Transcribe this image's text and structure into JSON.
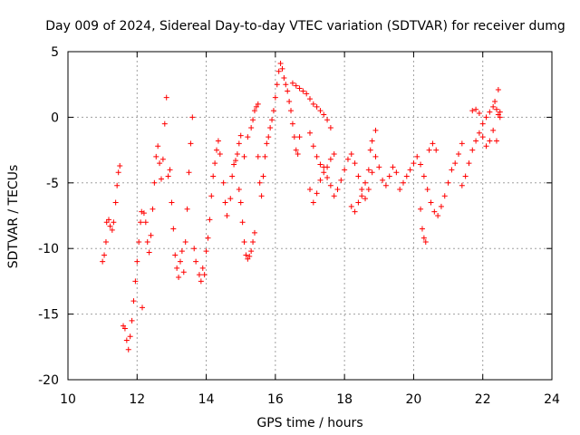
{
  "chart_data": {
    "type": "scatter",
    "title": "Day 009 of 2024, Sidereal Day-to-day VTEC variation (SDTVAR) for receiver dumg",
    "xlabel": "GPS time / hours",
    "ylabel": "SDTVAR / TECUs",
    "xlim": [
      10,
      24
    ],
    "ylim": [
      -20,
      5
    ],
    "xticks": [
      "10",
      "12",
      "14",
      "16",
      "18",
      "20",
      "22",
      "24"
    ],
    "yticks": [
      "5",
      "0",
      "-5",
      "-10",
      "-15",
      "-20"
    ],
    "grid": true,
    "marker": "+",
    "color": "#ff0000",
    "series": [
      {
        "name": "SDTVAR",
        "points": [
          [
            11.0,
            -11.0
          ],
          [
            11.05,
            -10.5
          ],
          [
            11.1,
            -9.5
          ],
          [
            11.12,
            -8.0
          ],
          [
            11.18,
            -7.8
          ],
          [
            11.22,
            -8.3
          ],
          [
            11.28,
            -8.6
          ],
          [
            11.32,
            -8.0
          ],
          [
            11.38,
            -6.5
          ],
          [
            11.42,
            -5.2
          ],
          [
            11.46,
            -4.2
          ],
          [
            11.5,
            -3.7
          ],
          [
            11.6,
            -15.9
          ],
          [
            11.65,
            -16.1
          ],
          [
            11.7,
            -17.0
          ],
          [
            11.75,
            -17.7
          ],
          [
            11.8,
            -16.7
          ],
          [
            11.85,
            -15.5
          ],
          [
            11.9,
            -14.0
          ],
          [
            11.95,
            -12.5
          ],
          [
            12.0,
            -11.0
          ],
          [
            12.05,
            -9.5
          ],
          [
            12.1,
            -8.0
          ],
          [
            12.13,
            -7.2
          ],
          [
            12.15,
            -14.5
          ],
          [
            12.2,
            -7.3
          ],
          [
            12.25,
            -8.0
          ],
          [
            12.3,
            -9.5
          ],
          [
            12.35,
            -10.3
          ],
          [
            12.4,
            -9.0
          ],
          [
            12.45,
            -7.0
          ],
          [
            12.5,
            -5.0
          ],
          [
            12.55,
            -3.0
          ],
          [
            12.6,
            -2.2
          ],
          [
            12.65,
            -3.5
          ],
          [
            12.7,
            -4.7
          ],
          [
            12.75,
            -3.2
          ],
          [
            12.8,
            -0.5
          ],
          [
            12.85,
            1.5
          ],
          [
            12.9,
            -4.5
          ],
          [
            12.95,
            -4.0
          ],
          [
            13.0,
            -6.5
          ],
          [
            13.05,
            -8.5
          ],
          [
            13.1,
            -10.5
          ],
          [
            13.15,
            -11.5
          ],
          [
            13.2,
            -12.2
          ],
          [
            13.25,
            -11.0
          ],
          [
            13.3,
            -10.2
          ],
          [
            13.35,
            -11.8
          ],
          [
            13.4,
            -9.5
          ],
          [
            13.45,
            -7.0
          ],
          [
            13.5,
            -4.2
          ],
          [
            13.55,
            -2.0
          ],
          [
            13.6,
            0.0
          ],
          [
            13.65,
            -10.0
          ],
          [
            13.7,
            -11.0
          ],
          [
            13.8,
            -12.0
          ],
          [
            13.85,
            -12.5
          ],
          [
            13.9,
            -11.5
          ],
          [
            13.95,
            -12.0
          ],
          [
            14.0,
            -10.2
          ],
          [
            14.05,
            -9.2
          ],
          [
            14.1,
            -7.8
          ],
          [
            14.15,
            -6.0
          ],
          [
            14.2,
            -4.5
          ],
          [
            14.25,
            -3.5
          ],
          [
            14.3,
            -2.5
          ],
          [
            14.35,
            -1.8
          ],
          [
            14.4,
            -2.8
          ],
          [
            14.5,
            -5.0
          ],
          [
            14.55,
            -6.5
          ],
          [
            14.6,
            -7.5
          ],
          [
            14.7,
            -6.2
          ],
          [
            14.75,
            -4.5
          ],
          [
            14.8,
            -3.6
          ],
          [
            14.85,
            -3.3
          ],
          [
            14.9,
            -2.8
          ],
          [
            14.95,
            -2.0
          ],
          [
            15.0,
            -1.4
          ],
          [
            14.95,
            -5.5
          ],
          [
            15.0,
            -6.5
          ],
          [
            15.05,
            -8.0
          ],
          [
            15.1,
            -9.5
          ],
          [
            15.15,
            -10.5
          ],
          [
            15.2,
            -10.8
          ],
          [
            15.25,
            -10.6
          ],
          [
            15.3,
            -10.2
          ],
          [
            15.35,
            -9.5
          ],
          [
            15.4,
            -8.8
          ],
          [
            15.1,
            -3.0
          ],
          [
            15.2,
            -1.5
          ],
          [
            15.3,
            -0.8
          ],
          [
            15.35,
            -0.2
          ],
          [
            15.4,
            0.5
          ],
          [
            15.45,
            0.8
          ],
          [
            15.5,
            1.0
          ],
          [
            15.5,
            -3.0
          ],
          [
            15.55,
            -5.0
          ],
          [
            15.6,
            -6.0
          ],
          [
            15.65,
            -4.5
          ],
          [
            15.7,
            -3.0
          ],
          [
            15.75,
            -2.0
          ],
          [
            15.8,
            -1.5
          ],
          [
            15.85,
            -0.8
          ],
          [
            15.9,
            -0.2
          ],
          [
            15.95,
            0.5
          ],
          [
            16.0,
            1.5
          ],
          [
            16.05,
            2.5
          ],
          [
            16.1,
            3.5
          ],
          [
            16.15,
            4.1
          ],
          [
            16.2,
            3.7
          ],
          [
            16.25,
            3.0
          ],
          [
            16.3,
            2.5
          ],
          [
            16.35,
            2.0
          ],
          [
            16.4,
            1.2
          ],
          [
            16.45,
            0.5
          ],
          [
            16.5,
            -0.5
          ],
          [
            16.55,
            -1.5
          ],
          [
            16.6,
            -2.5
          ],
          [
            16.65,
            -2.8
          ],
          [
            16.7,
            -1.5
          ],
          [
            16.5,
            2.6
          ],
          [
            16.6,
            2.4
          ],
          [
            16.7,
            2.2
          ],
          [
            16.8,
            2.0
          ],
          [
            16.9,
            1.8
          ],
          [
            17.0,
            1.4
          ],
          [
            17.1,
            1.0
          ],
          [
            17.2,
            0.8
          ],
          [
            17.3,
            0.5
          ],
          [
            17.4,
            0.2
          ],
          [
            17.5,
            -0.2
          ],
          [
            17.6,
            -0.8
          ],
          [
            17.0,
            -1.2
          ],
          [
            17.1,
            -2.2
          ],
          [
            17.2,
            -3.0
          ],
          [
            17.3,
            -3.6
          ],
          [
            17.4,
            -4.2
          ],
          [
            17.5,
            -3.8
          ],
          [
            17.6,
            -3.2
          ],
          [
            17.7,
            -2.8
          ],
          [
            17.0,
            -5.5
          ],
          [
            17.1,
            -6.5
          ],
          [
            17.2,
            -5.8
          ],
          [
            17.3,
            -4.8
          ],
          [
            17.4,
            -3.8
          ],
          [
            17.5,
            -4.6
          ],
          [
            17.6,
            -5.2
          ],
          [
            17.7,
            -6.0
          ],
          [
            17.8,
            -5.5
          ],
          [
            17.9,
            -4.8
          ],
          [
            18.0,
            -4.0
          ],
          [
            18.1,
            -3.2
          ],
          [
            18.2,
            -2.8
          ],
          [
            18.3,
            -3.5
          ],
          [
            18.4,
            -4.5
          ],
          [
            18.5,
            -5.5
          ],
          [
            18.6,
            -6.2
          ],
          [
            18.7,
            -5.5
          ],
          [
            18.8,
            -4.2
          ],
          [
            18.9,
            -3.0
          ],
          [
            19.0,
            -3.8
          ],
          [
            19.1,
            -4.8
          ],
          [
            19.2,
            -5.2
          ],
          [
            19.3,
            -4.5
          ],
          [
            19.4,
            -3.8
          ],
          [
            19.5,
            -4.2
          ],
          [
            18.2,
            -6.8
          ],
          [
            18.3,
            -7.2
          ],
          [
            18.4,
            -6.5
          ],
          [
            18.5,
            -6.0
          ],
          [
            18.6,
            -5.0
          ],
          [
            18.7,
            -4.0
          ],
          [
            18.75,
            -2.5
          ],
          [
            18.8,
            -1.8
          ],
          [
            18.9,
            -1.0
          ],
          [
            19.6,
            -5.5
          ],
          [
            19.7,
            -5.0
          ],
          [
            19.8,
            -4.5
          ],
          [
            19.9,
            -4.0
          ],
          [
            20.0,
            -3.5
          ],
          [
            20.1,
            -3.0
          ],
          [
            20.2,
            -3.6
          ],
          [
            20.3,
            -4.5
          ],
          [
            20.4,
            -5.5
          ],
          [
            20.5,
            -6.5
          ],
          [
            20.6,
            -7.2
          ],
          [
            20.7,
            -7.5
          ],
          [
            20.8,
            -6.8
          ],
          [
            20.9,
            -6.0
          ],
          [
            21.0,
            -5.0
          ],
          [
            21.1,
            -4.0
          ],
          [
            21.2,
            -3.5
          ],
          [
            21.3,
            -2.8
          ],
          [
            21.4,
            -2.0
          ],
          [
            20.2,
            -7.0
          ],
          [
            20.25,
            -8.5
          ],
          [
            20.3,
            -9.2
          ],
          [
            20.35,
            -9.5
          ],
          [
            20.45,
            -2.5
          ],
          [
            20.55,
            -2.0
          ],
          [
            20.65,
            -2.5
          ],
          [
            21.4,
            -5.2
          ],
          [
            21.5,
            -4.5
          ],
          [
            21.6,
            -3.5
          ],
          [
            21.7,
            -2.5
          ],
          [
            21.8,
            -1.8
          ],
          [
            21.9,
            -1.2
          ],
          [
            22.0,
            -0.5
          ],
          [
            22.1,
            0.0
          ],
          [
            22.2,
            0.4
          ],
          [
            22.3,
            0.8
          ],
          [
            22.35,
            1.2
          ],
          [
            22.4,
            0.6
          ],
          [
            22.45,
            0.2
          ],
          [
            22.5,
            0.4
          ],
          [
            21.7,
            0.5
          ],
          [
            21.8,
            0.6
          ],
          [
            21.9,
            0.3
          ],
          [
            22.0,
            -1.5
          ],
          [
            22.1,
            -2.2
          ],
          [
            22.2,
            -1.8
          ],
          [
            22.3,
            -1.0
          ],
          [
            22.4,
            -1.8
          ],
          [
            22.45,
            2.1
          ],
          [
            22.5,
            0.0
          ]
        ]
      }
    ]
  }
}
